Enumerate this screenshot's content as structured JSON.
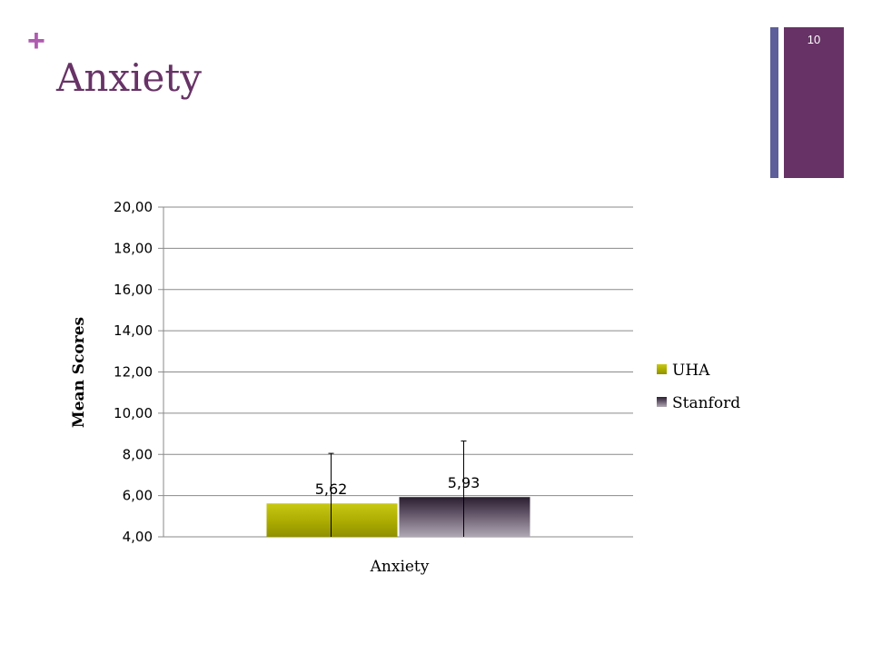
{
  "slide": {
    "plus_symbol": "+",
    "title": "Anxiety",
    "page_number": "10",
    "accent_color": "#673366",
    "accent_thin_color": "#5e5e9a",
    "plus_color": "#b05ab0",
    "title_color": "#673366"
  },
  "chart_data": {
    "type": "bar",
    "categories": [
      "Anxiety"
    ],
    "series": [
      {
        "name": "UHA",
        "values": [
          5.62
        ],
        "value_labels": [
          "5,62"
        ],
        "error_upper": [
          8.05
        ],
        "color": "#a8a800"
      },
      {
        "name": "Stanford",
        "values": [
          5.93
        ],
        "value_labels": [
          "5,93"
        ],
        "error_upper": [
          8.65
        ],
        "color": "#4a3d52"
      }
    ],
    "xlabel": "Anxiety",
    "ylabel": "Mean Scores",
    "ylim": [
      4,
      20
    ],
    "yticks": [
      4,
      6,
      8,
      10,
      12,
      14,
      16,
      18,
      20
    ],
    "ytick_labels": [
      "4,00",
      "6,00",
      "8,00",
      "10,00",
      "12,00",
      "14,00",
      "16,00",
      "18,00",
      "20,00"
    ],
    "grid": true,
    "legend_position": "right"
  }
}
